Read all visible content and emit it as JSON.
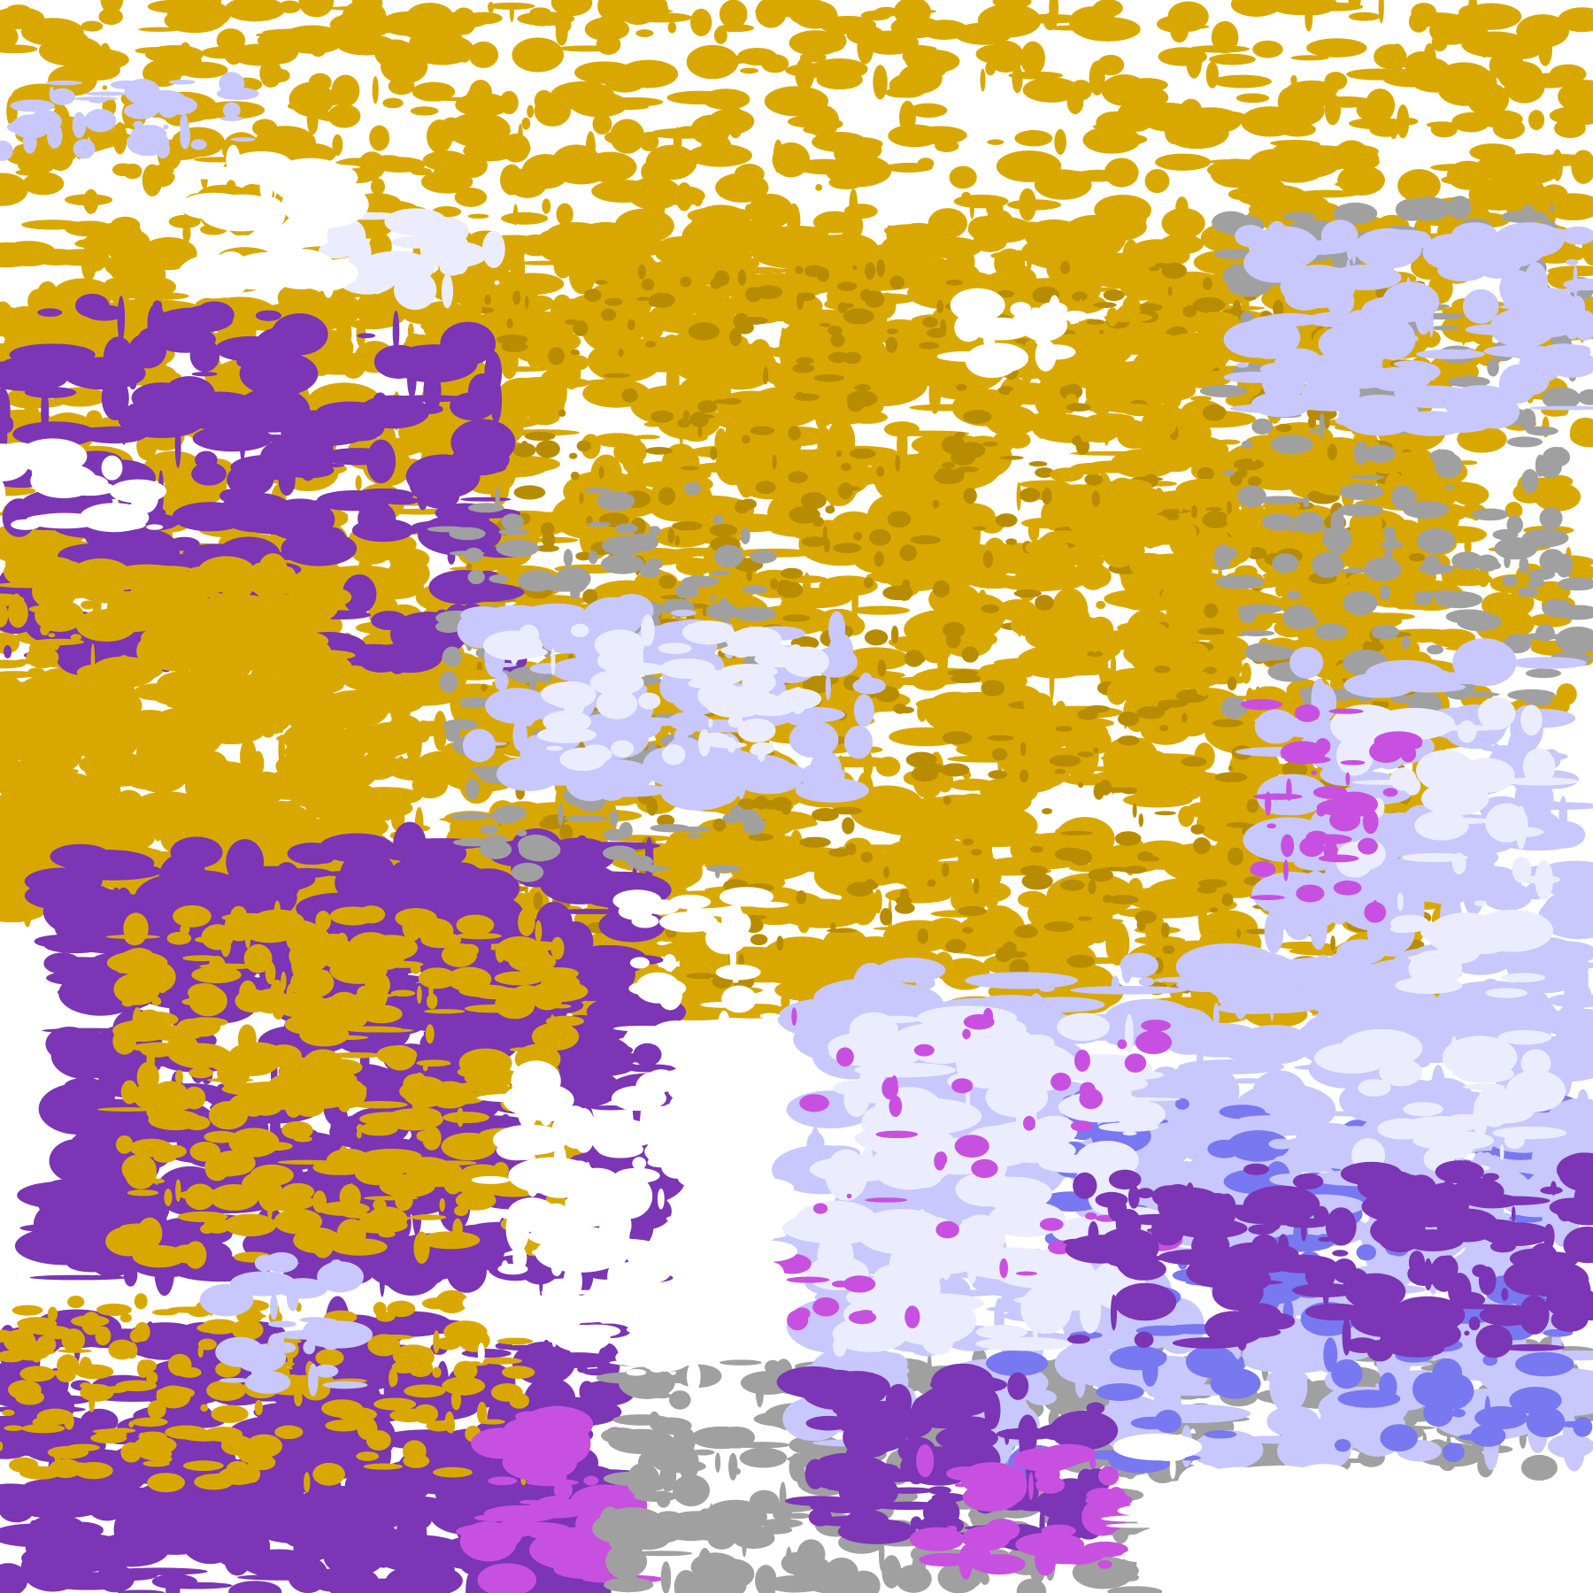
{
  "palette": {
    "clear": "#ffffff",
    "gold": "#d9a800",
    "dark_gold": "#b88c00",
    "purple": "#7b35b5",
    "magenta": "#c850e0",
    "lavender": "#c8c8ff",
    "pale_lavender": "#ececff",
    "periwinkle": "#7878f0",
    "gray": "#a0a0a0"
  }
}
